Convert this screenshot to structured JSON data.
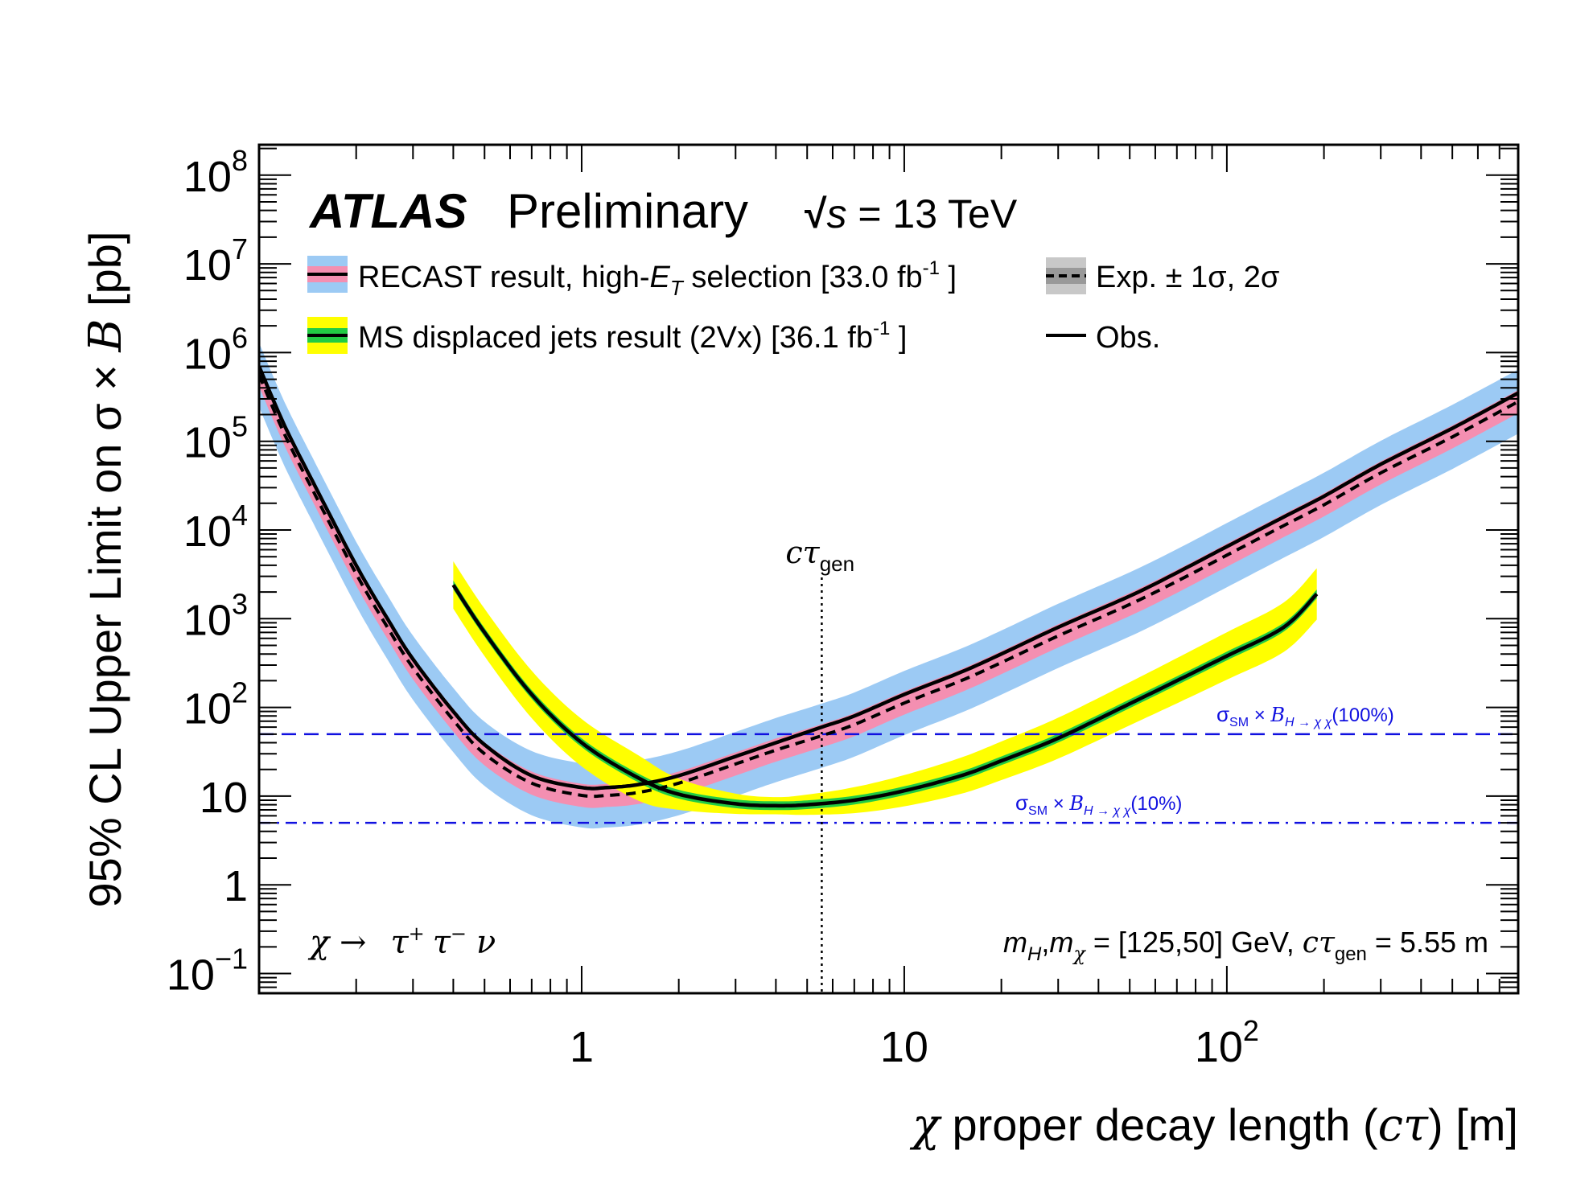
{
  "chart_data": {
    "type": "line",
    "x_scale": "log",
    "y_scale": "log",
    "xlim": [
      0.1,
      800
    ],
    "ylim": [
      0.06,
      220000000
    ],
    "xlabel": {
      "pre": "χ",
      "text": " proper decay length (",
      "ctau": "cτ",
      "post": ") [m]"
    },
    "ylabel": {
      "text": "95% CL Upper Limit on σ × ",
      "B": "B",
      "unit": " [pb]"
    },
    "x_ticks": [
      {
        "value": 1,
        "base": "1",
        "exp": ""
      },
      {
        "value": 10,
        "base": "10",
        "exp": ""
      },
      {
        "value": 100,
        "base": "10",
        "exp": "2"
      }
    ],
    "y_ticks": [
      {
        "value": 0.1,
        "base": "10",
        "exp": "−1"
      },
      {
        "value": 1,
        "base": "1",
        "exp": ""
      },
      {
        "value": 10,
        "base": "10",
        "exp": ""
      },
      {
        "value": 100,
        "base": "10",
        "exp": "2"
      },
      {
        "value": 1000,
        "base": "10",
        "exp": "3"
      },
      {
        "value": 10000,
        "base": "10",
        "exp": "4"
      },
      {
        "value": 100000,
        "base": "10",
        "exp": "5"
      },
      {
        "value": 1000000,
        "base": "10",
        "exp": "6"
      },
      {
        "value": 10000000,
        "base": "10",
        "exp": "7"
      },
      {
        "value": 100000000,
        "base": "10",
        "exp": "8"
      }
    ],
    "header": {
      "brand": "ATLAS",
      "status": "Preliminary",
      "sqrt": "√",
      "s": "s",
      "energy": " = 13 TeV"
    },
    "legend": {
      "recast": {
        "pre": "RECAST result, high-",
        "E": "E",
        "T": "T",
        "post": " selection [33.0 fb",
        "exp": "-1",
        "end": " ]"
      },
      "ms": {
        "pre": "MS displaced jets result (2Vx) [36.1 fb",
        "exp": "-1",
        "end": " ]"
      },
      "exp": "Exp. ± 1σ, 2σ",
      "obs": "Obs."
    },
    "decay_label": {
      "chi": "χ →",
      "taup": "τ",
      "taup_sup": "+",
      "taum": "τ",
      "taum_sup": "−",
      "nu": "ν"
    },
    "mass_label": {
      "m1": "m",
      "s1": "H",
      "comma": ",",
      "m2": "m",
      "s2": "χ",
      "mid": " = [125,50] GeV, ",
      "ct": "cτ",
      "s3": "gen",
      "post": " = 5.55 m"
    },
    "ctau_gen": {
      "value": 5.55,
      "label": "cτ",
      "sub": "gen"
    },
    "reference_lines": [
      {
        "value": 50,
        "style": "dashed",
        "color": "#1010e0",
        "sigma": "σ",
        "sm": "SM",
        "times": " × ",
        "B": "B",
        "sub": "H → χ χ",
        "pct": "(100%)"
      },
      {
        "value": 5,
        "style": "dashdot",
        "color": "#1010e0",
        "sigma": "σ",
        "sm": "SM",
        "times": " ×  ",
        "B": "B",
        "sub": "H → χ χ",
        "pct": "(10%)"
      }
    ],
    "series": [
      {
        "name": "RECAST result, high-ET selection",
        "color": "#000000",
        "band1_color": "#f48fb1",
        "band2_color": "#9ccaf4",
        "x": [
          0.1,
          0.12,
          0.15,
          0.2,
          0.25,
          0.3,
          0.4,
          0.5,
          0.7,
          1.0,
          1.2,
          1.5,
          2.0,
          3.0,
          4.0,
          5.55,
          7.0,
          10,
          15,
          20,
          30,
          50,
          70,
          100,
          150,
          200,
          300,
          500,
          800
        ],
        "observed": [
          700000,
          150000,
          30000,
          4000,
          1000,
          350,
          90,
          38,
          17,
          12.5,
          12.5,
          13.5,
          17,
          28,
          40,
          60,
          80,
          140,
          250,
          400,
          800,
          1800,
          3300,
          6500,
          14000,
          24000,
          55000,
          140000,
          350000
        ],
        "expected": [
          560000,
          120000,
          24000,
          3200,
          800,
          280,
          72,
          30,
          14,
          10.2,
          10.2,
          11,
          14,
          23,
          33,
          48,
          64,
          112,
          200,
          320,
          640,
          1450,
          2640,
          5200,
          11200,
          19200,
          44000,
          112000,
          280000
        ],
        "band1": [
          1.35,
          1.35,
          1.35,
          1.35,
          1.35,
          1.35,
          1.35,
          1.35,
          1.35,
          1.35,
          1.35,
          1.35,
          1.35,
          1.35,
          1.35,
          1.35,
          1.35,
          1.35,
          1.35,
          1.35,
          1.35,
          1.35,
          1.35,
          1.35,
          1.35,
          1.35,
          1.35,
          1.35,
          1.35
        ],
        "band2": [
          2.3,
          2.3,
          2.3,
          2.3,
          2.3,
          2.3,
          2.3,
          2.3,
          2.3,
          2.3,
          2.3,
          2.3,
          2.3,
          2.3,
          2.3,
          2.3,
          2.3,
          2.3,
          2.3,
          2.3,
          2.3,
          2.3,
          2.3,
          2.3,
          2.3,
          2.3,
          2.3,
          2.3,
          2.3
        ]
      },
      {
        "name": "MS displaced jets result (2Vx)",
        "color": "#000000",
        "band1_color": "#22cc44",
        "band2_color": "#ffff00",
        "x": [
          0.4,
          0.5,
          0.7,
          1.0,
          1.5,
          2.0,
          3.0,
          4.0,
          5.0,
          7.0,
          10,
          15,
          20,
          30,
          50,
          70,
          100,
          150,
          190
        ],
        "observed": [
          2400,
          700,
          140,
          40,
          16,
          10.5,
          8.2,
          7.8,
          8,
          9,
          11.5,
          17,
          25,
          45,
          110,
          200,
          380,
          800,
          1900
        ],
        "expected": [
          2400,
          700,
          140,
          40,
          16,
          10.5,
          8.2,
          7.8,
          8,
          9,
          11.5,
          17,
          25,
          45,
          110,
          200,
          380,
          800,
          1900
        ],
        "band1": [
          1.12,
          1.12,
          1.12,
          1.12,
          1.12,
          1.12,
          1.12,
          1.12,
          1.12,
          1.12,
          1.12,
          1.12,
          1.12,
          1.12,
          1.12,
          1.12,
          1.12,
          1.12,
          1.12
        ],
        "band2": [
          1.85,
          1.85,
          1.85,
          1.85,
          1.8,
          1.5,
          1.3,
          1.25,
          1.3,
          1.4,
          1.5,
          1.6,
          1.65,
          1.7,
          1.75,
          1.8,
          1.85,
          1.9,
          1.95
        ]
      }
    ]
  }
}
